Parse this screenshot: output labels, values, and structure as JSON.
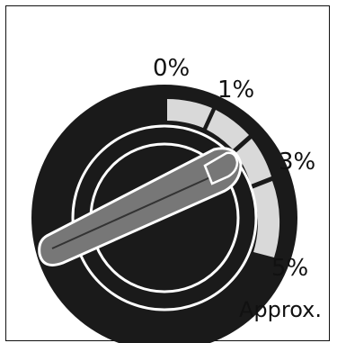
{
  "dial": {
    "scale_labels": [
      "0%",
      "1%",
      "3%",
      "5%"
    ],
    "note": "Approx.",
    "colors": {
      "body": "#1a1a1a",
      "scale_band": "#d9d9d9",
      "knob_handle": "#777777",
      "outline": "#ffffff"
    }
  }
}
